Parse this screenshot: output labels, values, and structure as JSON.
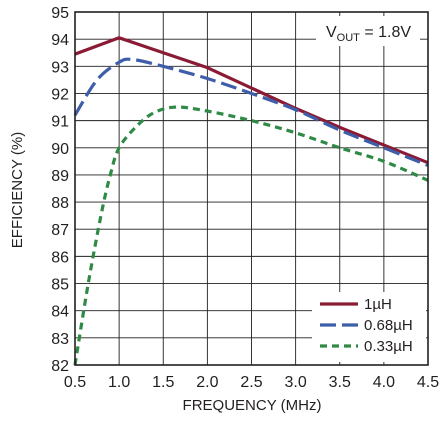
{
  "chart_data": {
    "type": "line",
    "xlabel": "FREQUENCY (MHz)",
    "ylabel": "EFFICIENCY (%)",
    "xlim": [
      0.5,
      4.5
    ],
    "ylim": [
      82,
      95
    ],
    "x_ticks": [
      0.5,
      1.0,
      1.5,
      2.0,
      2.5,
      3.0,
      3.5,
      4.0,
      4.5
    ],
    "x_tick_labels": [
      "0.5",
      "1.0",
      "1.5",
      "2.0",
      "2.5",
      "3.0",
      "3.5",
      "4.0",
      "4.5"
    ],
    "y_ticks": [
      82,
      83,
      84,
      85,
      86,
      87,
      88,
      89,
      90,
      91,
      92,
      93,
      94,
      95
    ],
    "y_tick_labels": [
      "82",
      "83",
      "84",
      "85",
      "86",
      "87",
      "88",
      "89",
      "90",
      "91",
      "92",
      "93",
      "94",
      "95"
    ],
    "grid": true,
    "legend_position": "bottom-right",
    "annotation": {
      "v": "V",
      "sub": "OUT",
      "rest": " = 1.8V"
    },
    "series": [
      {
        "name": "1µH",
        "color": "#8b1a35",
        "dash": "solid",
        "x": [
          0.5,
          1.0,
          1.5,
          2.0,
          2.5,
          3.0,
          3.5,
          4.0,
          4.5
        ],
        "y": [
          93.45,
          94.05,
          93.5,
          92.95,
          92.2,
          91.45,
          90.75,
          90.1,
          89.45
        ]
      },
      {
        "name": "0.68µH",
        "color": "#3f5ea9",
        "dash": "long-dash",
        "x": [
          0.5,
          0.75,
          1.0,
          1.15,
          1.5,
          2.0,
          2.5,
          3.0,
          3.5,
          4.0,
          4.5
        ],
        "y": [
          91.2,
          92.5,
          93.15,
          93.25,
          93.0,
          92.55,
          92.0,
          91.4,
          90.65,
          90.0,
          89.35
        ]
      },
      {
        "name": "0.33µH",
        "color": "#2f8a45",
        "dash": "short-dash",
        "x": [
          0.5,
          0.65,
          0.8,
          0.9,
          1.0,
          1.2,
          1.4,
          1.65,
          2.0,
          2.5,
          3.0,
          3.5,
          4.0,
          4.5
        ],
        "y": [
          82.0,
          85.0,
          87.6,
          89.0,
          90.0,
          90.8,
          91.3,
          91.5,
          91.35,
          91.0,
          90.55,
          90.0,
          89.5,
          88.8
        ]
      }
    ]
  }
}
